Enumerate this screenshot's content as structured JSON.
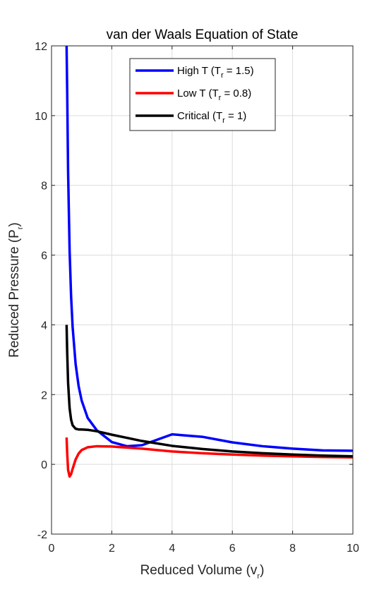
{
  "chart_data": {
    "type": "line",
    "title": "van der Waals Equation of State",
    "xlabel": {
      "main": "Reduced Volume (v",
      "sub": "r",
      "end": ")"
    },
    "ylabel": {
      "main": "Reduced Pressure (P",
      "sub": "r",
      "end": ")"
    },
    "xlim": [
      0,
      10
    ],
    "ylim": [
      -2,
      12
    ],
    "xticks": [
      0,
      2,
      4,
      6,
      8,
      10
    ],
    "yticks": [
      -2,
      0,
      2,
      4,
      6,
      8,
      10,
      12
    ],
    "grid": true,
    "legend_position": "top-center",
    "series": [
      {
        "legend": {
          "main": "High T (T",
          "sub": "r",
          "end": " = 1.5)"
        },
        "color": "#0000ff",
        "x": [
          0.5,
          0.52,
          0.55,
          0.6,
          0.65,
          0.7,
          0.8,
          0.9,
          1.0,
          1.2,
          1.5,
          2.0,
          2.5,
          3,
          4,
          5,
          6,
          7,
          8,
          9,
          10
        ],
        "y": [
          12,
          10.69,
          8.39,
          6.13,
          4.81,
          3.94,
          2.87,
          2.24,
          1.83,
          1.33,
          0.98,
          0.64,
          0.52,
          0.55,
          0.86,
          0.79,
          0.63,
          0.52,
          0.45,
          0.4,
          0.39
        ]
      },
      {
        "legend": {
          "main": "Low T (T",
          "sub": "r",
          "end": " = 0.8)"
        },
        "color": "#ff0000",
        "x": [
          0.5,
          0.52,
          0.55,
          0.6,
          0.65,
          0.7,
          0.8,
          0.9,
          1.0,
          1.2,
          1.5,
          2.0,
          2.5,
          3,
          4,
          5,
          6,
          7,
          8,
          9,
          10
        ],
        "y": [
          0.77,
          0.32,
          -0.16,
          -0.35,
          -0.28,
          -0.13,
          0.14,
          0.31,
          0.41,
          0.49,
          0.52,
          0.51,
          0.48,
          0.45,
          0.37,
          0.32,
          0.28,
          0.25,
          0.23,
          0.21,
          0.2
        ]
      },
      {
        "legend": {
          "main": "Critical (T",
          "sub": "r",
          "end": " = 1)"
        },
        "color": "#000000",
        "x": [
          0.5,
          0.52,
          0.55,
          0.6,
          0.65,
          0.7,
          0.8,
          0.9,
          1.0,
          1.2,
          1.5,
          2.0,
          2.5,
          3,
          4,
          5,
          6,
          7,
          8,
          9,
          10
        ],
        "y": [
          4.0,
          3.21,
          2.34,
          1.61,
          1.28,
          1.12,
          1.02,
          1.0,
          1.0,
          0.99,
          0.95,
          0.85,
          0.76,
          0.67,
          0.53,
          0.44,
          0.37,
          0.32,
          0.28,
          0.25,
          0.23
        ]
      }
    ]
  }
}
